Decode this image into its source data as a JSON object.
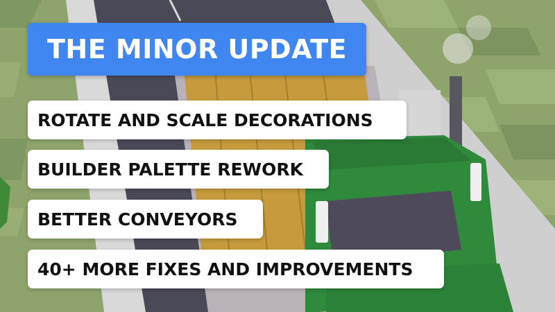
{
  "title": "THE MINOR UPDATE",
  "features": [
    "ROTATE AND SCALE DECORATIONS",
    "BUILDER PALETTE REWORK",
    "BETTER CONVEYORS",
    "40+ MORE FIXES AND IMPROVEMENTS"
  ],
  "colors": {
    "title_bg": "#3f86f0",
    "title_text": "#ffffff",
    "card_bg": "#ffffff",
    "card_text": "#111111",
    "grass": "#8aa06a",
    "road": "#4b4a5a",
    "truck": "#2f8a3c",
    "cargo": "#c59a3c"
  }
}
